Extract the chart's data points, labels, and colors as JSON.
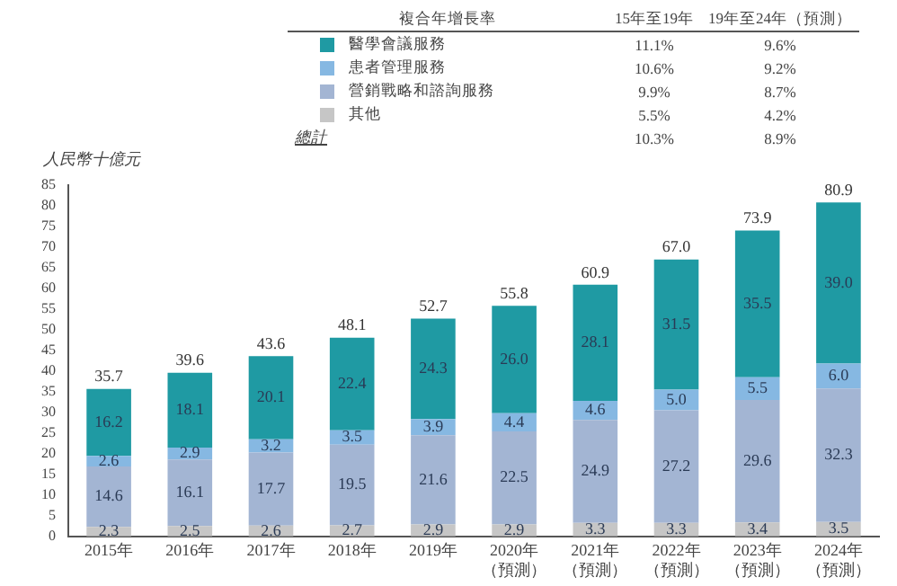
{
  "chart_data": {
    "type": "bar",
    "stacked": true,
    "ylabel": "人民幣十億元",
    "categories": [
      "2015年",
      "2016年",
      "2017年",
      "2018年",
      "2019年",
      "2020年（預測）",
      "2021年（預測）",
      "2022年（預測）",
      "2023年（預測）",
      "2024年（預測）"
    ],
    "series": [
      {
        "name": "其他",
        "color": "#c6c6c6",
        "values": [
          2.3,
          2.5,
          2.6,
          2.7,
          2.9,
          2.9,
          3.3,
          3.3,
          3.4,
          3.5
        ],
        "value_labels": [
          "2.3",
          "2.5",
          "2.6",
          "2.7",
          "2.9",
          "2.9",
          "3.3",
          "3.3",
          "3.4",
          "3.5"
        ]
      },
      {
        "name": "營銷戰略和諮詢服務",
        "color": "#a3b5d3",
        "values": [
          14.6,
          16.1,
          17.7,
          19.5,
          21.6,
          22.5,
          24.9,
          27.2,
          29.6,
          32.3
        ],
        "value_labels": [
          "14.6",
          "16.1",
          "17.7",
          "19.5",
          "21.6",
          "22.5",
          "24.9",
          "27.2",
          "29.6",
          "32.3"
        ]
      },
      {
        "name": "患者管理服務",
        "color": "#86b8e2",
        "values": [
          2.6,
          2.9,
          3.2,
          3.5,
          3.9,
          4.4,
          4.6,
          5.0,
          5.5,
          6.0
        ],
        "value_labels": [
          "2.6",
          "2.9",
          "3.2",
          "3.5",
          "3.9",
          "4.4",
          "4.6",
          "5.0",
          "5.5",
          "6.0"
        ]
      },
      {
        "name": "醫學會議服務",
        "color": "#1f9aa3",
        "values": [
          16.2,
          18.1,
          20.1,
          22.4,
          24.3,
          26.0,
          28.1,
          31.5,
          35.5,
          39.0
        ],
        "value_labels": [
          "16.2",
          "18.1",
          "20.1",
          "22.4",
          "24.3",
          "26.0",
          "28.1",
          "31.5",
          "35.5",
          "39.0"
        ]
      }
    ],
    "totals": [
      "35.7",
      "39.6",
      "43.6",
      "48.1",
      "52.7",
      "55.8",
      "60.9",
      "67.0",
      "73.9",
      "80.9"
    ],
    "ylim": [
      0,
      85
    ],
    "yticks": [
      0,
      5,
      10,
      15,
      20,
      25,
      30,
      35,
      40,
      45,
      50,
      55,
      60,
      65,
      70,
      75,
      80,
      85
    ],
    "grid": false,
    "legend": "top",
    "annotations": [
      "複合年增長率",
      "15年至19年",
      "19年至24年（預測）",
      "5.5%",
      "4.2%",
      "9.9%",
      "8.7%",
      "10.6%",
      "9.2%",
      "11.1%",
      "9.6%",
      "總計",
      "10.3%",
      "8.9%"
    ]
  }
}
